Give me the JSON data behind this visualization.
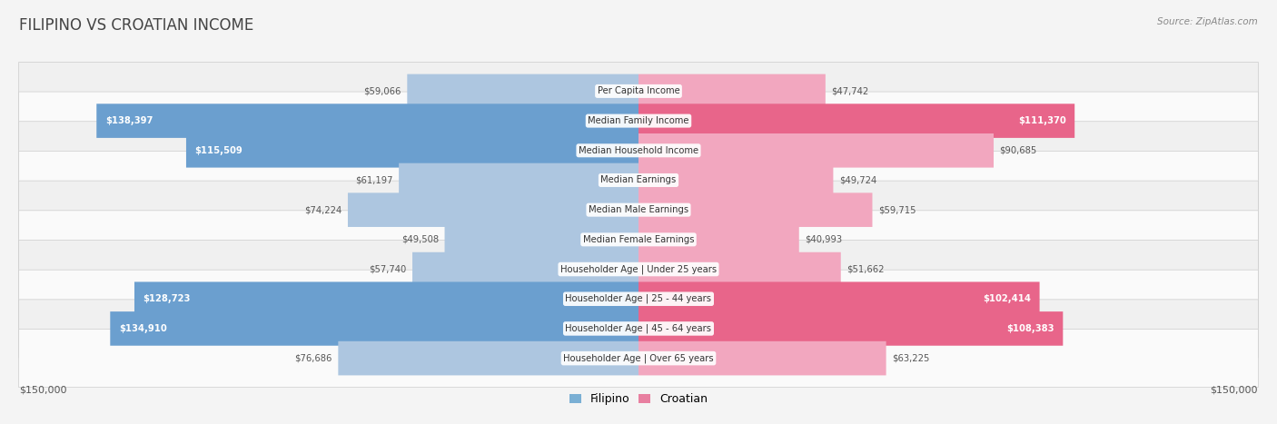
{
  "title": "FILIPINO VS CROATIAN INCOME",
  "source": "Source: ZipAtlas.com",
  "categories": [
    "Per Capita Income",
    "Median Family Income",
    "Median Household Income",
    "Median Earnings",
    "Median Male Earnings",
    "Median Female Earnings",
    "Householder Age | Under 25 years",
    "Householder Age | 25 - 44 years",
    "Householder Age | 45 - 64 years",
    "Householder Age | Over 65 years"
  ],
  "filipino_values": [
    59066,
    138397,
    115509,
    61197,
    74224,
    49508,
    57740,
    128723,
    134910,
    76686
  ],
  "croatian_values": [
    47742,
    111370,
    90685,
    49724,
    59715,
    40993,
    51662,
    102414,
    108383,
    63225
  ],
  "max_val": 150000,
  "fil_light": "#adc6e0",
  "fil_dark": "#6b9fcf",
  "cro_light": "#f2a7bf",
  "cro_dark": "#e8658a",
  "bg_color": "#f4f4f4",
  "row_colors": [
    "#f0f0f0",
    "#fafafa"
  ],
  "label_color": "#555555",
  "title_color": "#444444",
  "legend_fil": "#7aafd4",
  "legend_cro": "#e87fa0",
  "fil_large_threshold": 0.68,
  "cro_large_threshold": 0.68
}
